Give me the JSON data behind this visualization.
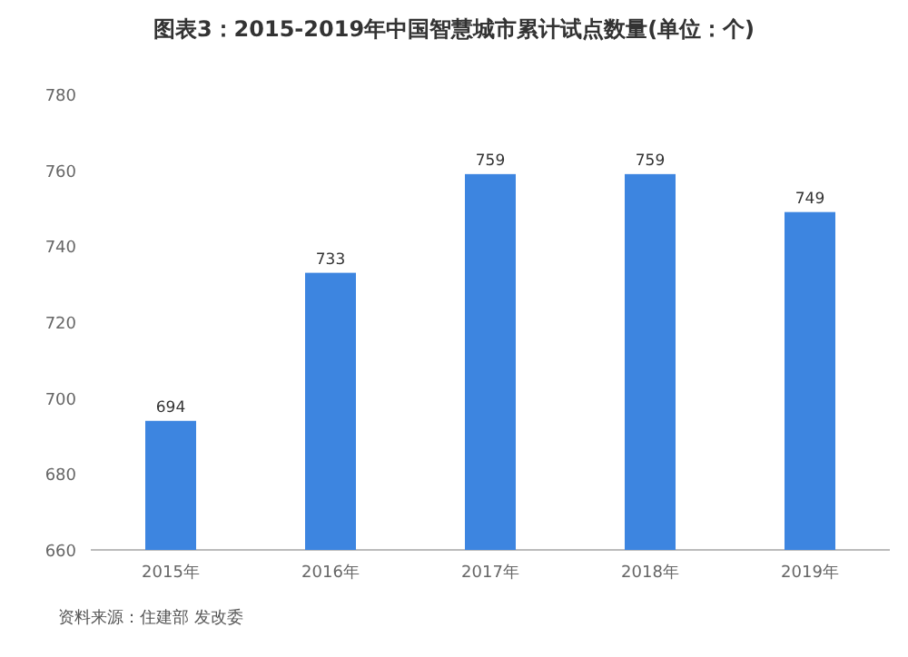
{
  "chart_data": {
    "type": "bar",
    "title": "图表3：2015-2019年中国智慧城市累计试点数量(单位：个)",
    "categories": [
      "2015年",
      "2016年",
      "2017年",
      "2018年",
      "2019年"
    ],
    "values": [
      694,
      733,
      759,
      759,
      749
    ],
    "color": "#3d85e0",
    "ylim": [
      660,
      780
    ],
    "yticks": [
      660,
      680,
      700,
      720,
      740,
      760,
      780
    ],
    "data_labels": true,
    "annotations": [
      "资料来源：住建部 发改委"
    ]
  }
}
